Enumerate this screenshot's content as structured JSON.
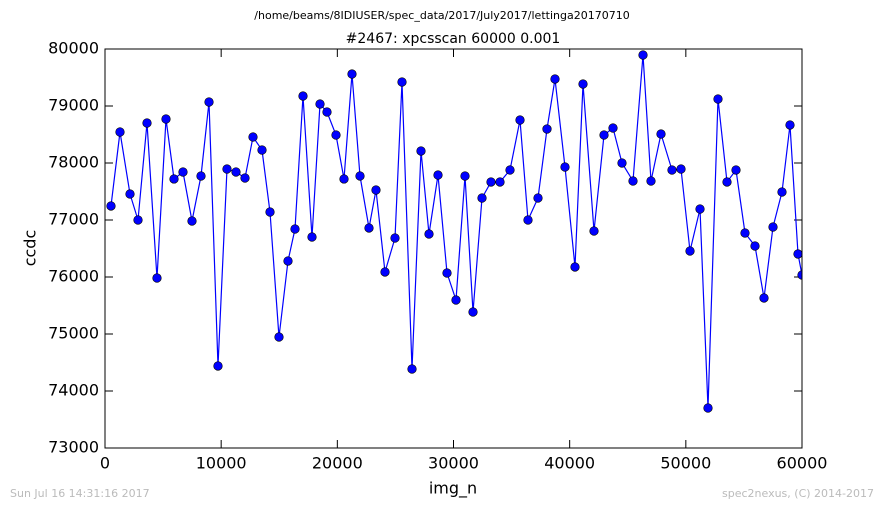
{
  "chart_data": {
    "type": "line",
    "suptitle": "/home/beams/8IDIUSER/spec_data/2017/July2017/lettinga20170710",
    "title": "#2467: xpcsscan 60000 0.001",
    "xlabel": "img_n",
    "ylabel": "ccdc",
    "timestamp": "Sun Jul 16 14:31:16 2017",
    "credit": "spec2nexus, (C) 2014-2017",
    "color": "#0000ff",
    "x": [
      516,
      1291,
      2152,
      2841,
      3616,
      4476,
      5251,
      5940,
      6714,
      7489,
      8264,
      8953,
      9727,
      10502,
      11277,
      12052,
      12740,
      13515,
      14204,
      14978,
      15753,
      16356,
      17044,
      17819,
      18508,
      19110,
      19885,
      20574,
      21262,
      21951,
      22726,
      23328,
      24103,
      24964,
      25567,
      26428,
      27202,
      27891,
      28666,
      29441,
      30215,
      30990,
      31679,
      32454,
      33228,
      34003,
      34864,
      35725,
      36413,
      37274,
      38049,
      38737,
      39598,
      40459,
      41148,
      42095,
      42956,
      43730,
      44505,
      45452,
      46313,
      47001,
      47862,
      48809,
      49584,
      50359,
      51220,
      51908,
      52769,
      53544,
      54319,
      55093,
      55954,
      56729,
      57504,
      58278,
      58967,
      59656,
      60000
    ],
    "values": [
      77246,
      78544,
      77456,
      77000,
      78702,
      75982,
      78772,
      77720,
      77842,
      76982,
      77772,
      79070,
      74439,
      77895,
      77842,
      77737,
      78456,
      78228,
      77140,
      74947,
      76281,
      76842,
      79175,
      76702,
      79035,
      78895,
      78491,
      77720,
      79561,
      77772,
      76860,
      77526,
      76088,
      76684,
      79421,
      74386,
      78211,
      76754,
      77789,
      76070,
      75596,
      77772,
      75386,
      77386,
      77667,
      77667,
      77877,
      78754,
      77000,
      77386,
      78596,
      79474,
      77930,
      76176,
      79386,
      76807,
      78491,
      78614,
      78000,
      77684,
      79895,
      77684,
      78509,
      77877,
      77895,
      76456,
      77193,
      73702,
      79123,
      77667,
      77877,
      76772,
      76544,
      75632,
      76877,
      77491,
      78667,
      76404,
      76035
    ],
    "xlim": [
      0,
      60000
    ],
    "xticks": [
      0,
      10000,
      20000,
      30000,
      40000,
      50000,
      60000
    ],
    "ylim": [
      73000,
      80000
    ],
    "yticks": [
      73000,
      74000,
      75000,
      76000,
      77000,
      78000,
      79000,
      80000
    ]
  }
}
